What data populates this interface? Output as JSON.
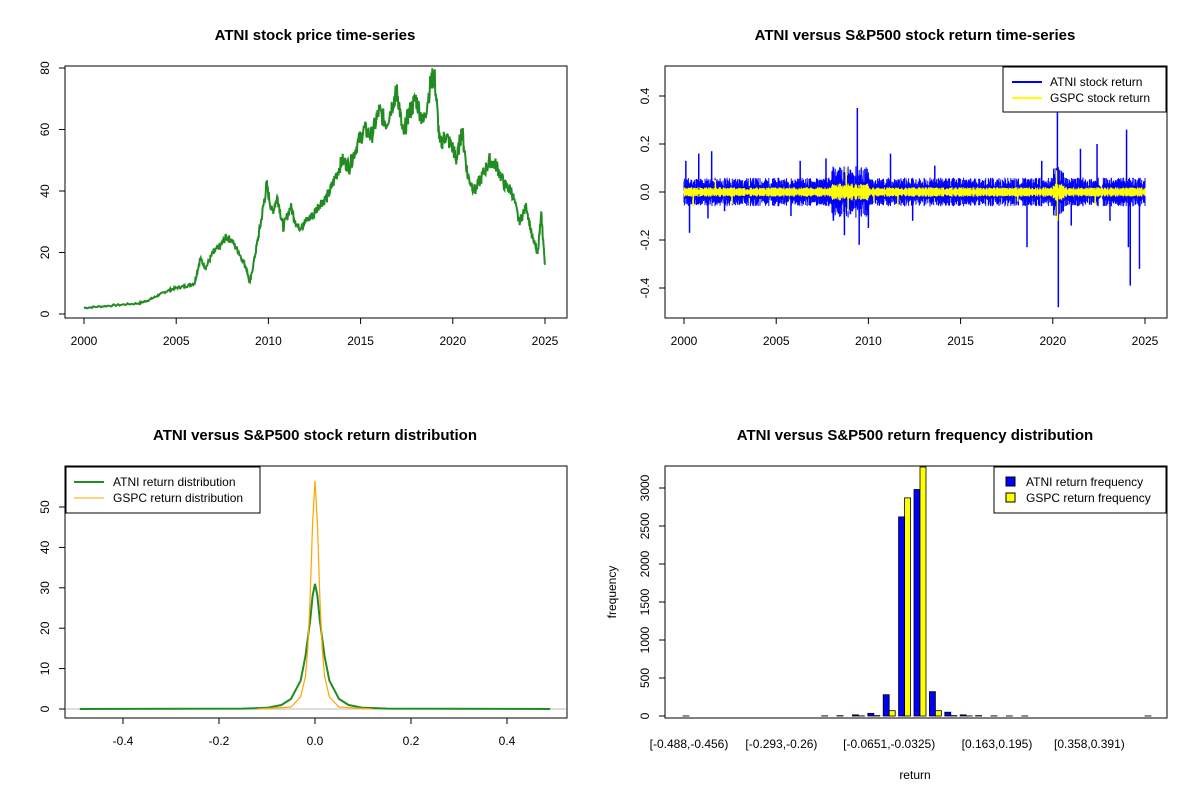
{
  "chart_data": [
    {
      "type": "line",
      "title": "ATNI stock price time-series",
      "xlabel": "",
      "ylabel": "",
      "xlim": [
        2000,
        2025
      ],
      "ylim": [
        0,
        80
      ],
      "xticks": [
        "2000",
        "2005",
        "2010",
        "2015",
        "2020",
        "2025"
      ],
      "yticks": [
        "0",
        "20",
        "40",
        "60",
        "80"
      ],
      "color": "#228B22",
      "series": [
        {
          "name": "ATNI price",
          "x": [
            2000.0,
            2001.0,
            2002.0,
            2003.0,
            2003.5,
            2004.0,
            2004.5,
            2005.0,
            2005.5,
            2006.0,
            2006.3,
            2006.6,
            2007.0,
            2007.4,
            2007.7,
            2008.0,
            2008.4,
            2008.8,
            2009.0,
            2009.3,
            2009.6,
            2009.9,
            2010.2,
            2010.5,
            2010.8,
            2011.2,
            2011.6,
            2012.0,
            2012.4,
            2012.8,
            2013.2,
            2013.6,
            2014.0,
            2014.4,
            2014.8,
            2015.2,
            2015.6,
            2016.0,
            2016.4,
            2016.8,
            2017.0,
            2017.3,
            2017.6,
            2018.0,
            2018.4,
            2018.8,
            2019.0,
            2019.3,
            2019.6,
            2020.0,
            2020.2,
            2020.5,
            2020.8,
            2021.2,
            2021.6,
            2022.0,
            2022.4,
            2022.8,
            2023.2,
            2023.6,
            2024.0,
            2024.3,
            2024.6,
            2024.8,
            2025.0
          ],
          "y": [
            2,
            2.5,
            3,
            3.5,
            4.5,
            6,
            7.5,
            8.5,
            9,
            10,
            18,
            15,
            20,
            22,
            25,
            24,
            20,
            15,
            10,
            20,
            30,
            42,
            33,
            38,
            28,
            35,
            28,
            30,
            32,
            36,
            38,
            44,
            50,
            48,
            55,
            60,
            58,
            66,
            62,
            70,
            72,
            58,
            65,
            70,
            62,
            75,
            78,
            55,
            58,
            54,
            50,
            60,
            45,
            40,
            45,
            50,
            48,
            42,
            40,
            30,
            35,
            25,
            20,
            32,
            16
          ]
        }
      ]
    },
    {
      "type": "line",
      "title": "ATNI versus S&P500 stock return time-series",
      "xlabel": "",
      "ylabel": "",
      "xlim": [
        2000,
        2025
      ],
      "ylim": [
        -0.5,
        0.5
      ],
      "xticks": [
        "2000",
        "2005",
        "2010",
        "2015",
        "2020",
        "2025"
      ],
      "yticks": [
        "-0.4",
        "-0.2",
        "0.0",
        "0.2",
        "0.4"
      ],
      "legend": [
        "ATNI stock return",
        "GSPC stock return"
      ],
      "legend_position": "top-right",
      "series": [
        {
          "name": "ATNI stock return",
          "color": "#0000FF",
          "spikes": [
            [
              2000.1,
              0.13
            ],
            [
              2000.3,
              -0.17
            ],
            [
              2000.8,
              0.16
            ],
            [
              2001.3,
              -0.11
            ],
            [
              2001.5,
              0.17
            ],
            [
              2002.2,
              -0.08
            ],
            [
              2005.8,
              -0.1
            ],
            [
              2006.3,
              0.13
            ],
            [
              2007.7,
              0.14
            ],
            [
              2008.1,
              -0.12
            ],
            [
              2008.7,
              -0.18
            ],
            [
              2009.4,
              0.35
            ],
            [
              2009.5,
              -0.22
            ],
            [
              2010.0,
              -0.15
            ],
            [
              2011.2,
              0.16
            ],
            [
              2012.4,
              -0.12
            ],
            [
              2013.6,
              0.11
            ],
            [
              2018.6,
              -0.23
            ],
            [
              2019.4,
              0.13
            ],
            [
              2020.25,
              0.38
            ],
            [
              2020.3,
              -0.48
            ],
            [
              2021.0,
              -0.14
            ],
            [
              2021.5,
              0.18
            ],
            [
              2022.4,
              0.2
            ],
            [
              2023.1,
              -0.12
            ],
            [
              2024.0,
              0.26
            ],
            [
              2024.1,
              -0.23
            ],
            [
              2024.2,
              -0.39
            ],
            [
              2024.7,
              -0.32
            ]
          ]
        },
        {
          "name": "GSPC stock return",
          "color": "#FFFF00",
          "spikes": [
            [
              2000.5,
              -0.06
            ],
            [
              2001.7,
              0.05
            ],
            [
              2002.6,
              -0.05
            ],
            [
              2008.8,
              0.1
            ],
            [
              2008.9,
              -0.08
            ],
            [
              2010.3,
              -0.04
            ],
            [
              2011.6,
              -0.06
            ],
            [
              2018.1,
              -0.04
            ],
            [
              2020.2,
              0.09
            ],
            [
              2020.25,
              -0.12
            ],
            [
              2022.3,
              -0.05
            ]
          ]
        }
      ]
    },
    {
      "type": "line",
      "title": "ATNI versus S&P500 stock return distribution",
      "xlabel": "",
      "ylabel": "",
      "xlim": [
        -0.5,
        0.5
      ],
      "ylim": [
        0,
        57
      ],
      "xticks": [
        "-0.4",
        "-0.2",
        "0.0",
        "0.2",
        "0.4"
      ],
      "yticks": [
        "0",
        "10",
        "20",
        "30",
        "40",
        "50"
      ],
      "legend": [
        "ATNI return distribution",
        "GSPC return distribution"
      ],
      "legend_position": "top-left",
      "series": [
        {
          "name": "ATNI return distribution",
          "color": "#228B22",
          "x": [
            -0.49,
            -0.15,
            -0.1,
            -0.07,
            -0.05,
            -0.03,
            -0.02,
            -0.01,
            -0.005,
            0.0,
            0.005,
            0.01,
            0.02,
            0.03,
            0.05,
            0.07,
            0.1,
            0.15,
            0.49
          ],
          "y": [
            0,
            0.1,
            0.3,
            1.0,
            2.5,
            7.0,
            13.0,
            22.0,
            28.0,
            31.0,
            28.0,
            22.0,
            13.0,
            7.0,
            2.5,
            1.0,
            0.3,
            0.1,
            0
          ]
        },
        {
          "name": "GSPC return distribution",
          "color": "#FFA500",
          "x": [
            -0.12,
            -0.05,
            -0.03,
            -0.02,
            -0.015,
            -0.01,
            -0.005,
            0.0,
            0.005,
            0.01,
            0.015,
            0.02,
            0.03,
            0.05,
            0.12
          ],
          "y": [
            0,
            0.5,
            3.0,
            8.0,
            15.0,
            28.0,
            46.0,
            56.5,
            46.0,
            28.0,
            15.0,
            8.0,
            3.0,
            0.5,
            0
          ]
        }
      ]
    },
    {
      "type": "bar",
      "title": "ATNI versus S&P500 return frequency distribution",
      "xlabel": "return",
      "ylabel": "frequency",
      "ylim": [
        0,
        3300
      ],
      "yticks": [
        "0",
        "500",
        "1000",
        "1500",
        "2000",
        "2500",
        "3000"
      ],
      "xtick_labels": [
        "[-0.488,-0.456)",
        "[-0.293,-0.26)",
        "[-0.0651,-0.0325)",
        "[0.163,0.195)",
        "[0.358,0.391)"
      ],
      "xtick_positions": [
        0,
        6,
        13,
        20,
        26
      ],
      "legend": [
        "ATNI return frequency",
        "GSPC return frequency"
      ],
      "legend_position": "top-right",
      "series": [
        {
          "name": "ATNI return frequency",
          "color": "#0000FF",
          "values": [
            1,
            0,
            0,
            0,
            0,
            0,
            0,
            0,
            0,
            2,
            4,
            15,
            35,
            280,
            2620,
            2980,
            320,
            50,
            15,
            5,
            2,
            1,
            1,
            0,
            0,
            0,
            0,
            0,
            0,
            0,
            1
          ]
        },
        {
          "name": "GSPC return frequency",
          "color": "#FFFF00",
          "values": [
            0,
            0,
            0,
            0,
            0,
            0,
            0,
            0,
            0,
            0,
            0,
            2,
            5,
            70,
            2870,
            3400,
            70,
            5,
            1,
            0,
            0,
            0,
            0,
            0,
            0,
            0,
            0,
            0,
            0,
            0,
            0
          ]
        }
      ]
    }
  ]
}
